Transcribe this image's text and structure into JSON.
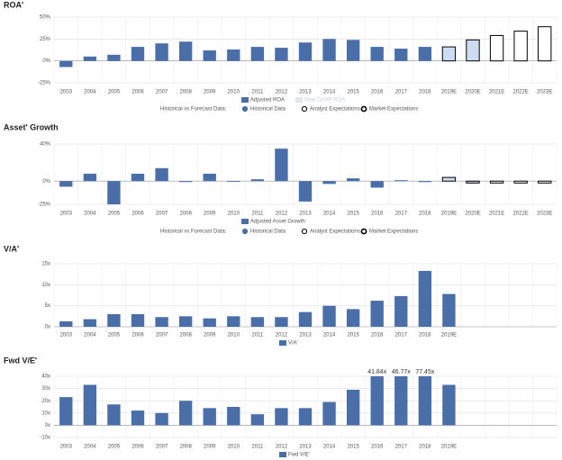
{
  "chart_data": [
    {
      "type": "bar",
      "title": "ROA'",
      "categories": [
        "2003",
        "2004",
        "2005",
        "2006",
        "2007",
        "2008",
        "2009",
        "2010",
        "2011",
        "2012",
        "2013",
        "2014",
        "2015",
        "2016",
        "2017",
        "2018",
        "2019E",
        "2020E",
        "2021E",
        "2022E",
        "2023E"
      ],
      "series": [
        {
          "name": "Historical Data",
          "color": "#4a6ea8",
          "values": [
            -7,
            5,
            7,
            16,
            20,
            22,
            12,
            13,
            16,
            15,
            21,
            25,
            24,
            16,
            14,
            16,
            null,
            null,
            null,
            null,
            null
          ]
        },
        {
          "name": "Analyst Expectations",
          "color": "#cddcf0",
          "values": [
            null,
            null,
            null,
            null,
            null,
            null,
            null,
            null,
            null,
            null,
            null,
            null,
            null,
            null,
            null,
            null,
            16,
            24,
            null,
            null,
            null
          ]
        },
        {
          "name": "Market Expectations",
          "color": "#ffffff",
          "values": [
            null,
            null,
            null,
            null,
            null,
            null,
            null,
            null,
            null,
            null,
            null,
            null,
            null,
            null,
            null,
            null,
            null,
            null,
            29,
            34,
            39
          ]
        }
      ],
      "legend": [
        "Adjusted ROA",
        "Real GAAP ROA"
      ],
      "legend_title": "Historical vs Forecast Data:",
      "ylim": [
        -25,
        50
      ],
      "yticks": [
        {
          "value": -25,
          "label": "-25%"
        },
        {
          "value": 0,
          "label": "0%"
        },
        {
          "value": 25,
          "label": "25%"
        },
        {
          "value": 50,
          "label": "50%"
        }
      ]
    },
    {
      "type": "bar",
      "title": "Asset' Growth",
      "categories": [
        "2003",
        "2004",
        "2005",
        "2006",
        "2007",
        "2008",
        "2009",
        "2010",
        "2011",
        "2012",
        "2013",
        "2014",
        "2015",
        "2016",
        "2017",
        "2018",
        "2019E",
        "2020E",
        "2021E",
        "2022E",
        "2023E"
      ],
      "series": [
        {
          "name": "Historical Data",
          "color": "#4a6ea8",
          "values": [
            -6,
            8,
            -25,
            8,
            14,
            -1,
            8,
            0,
            2,
            35,
            -22,
            -3,
            3,
            -7,
            1,
            -1,
            null,
            null,
            null,
            null,
            null
          ]
        },
        {
          "name": "Analyst Expectations",
          "color": "#cddcf0",
          "values": [
            null,
            null,
            null,
            null,
            null,
            null,
            null,
            null,
            null,
            null,
            null,
            null,
            null,
            null,
            null,
            null,
            4,
            -2,
            null,
            null,
            null
          ]
        },
        {
          "name": "Market Expectations",
          "color": "#ffffff",
          "values": [
            null,
            null,
            null,
            null,
            null,
            null,
            null,
            null,
            null,
            null,
            null,
            null,
            null,
            null,
            null,
            null,
            null,
            null,
            -2,
            -2,
            -2
          ]
        }
      ],
      "legend": [
        "Adjusted Asset Growth"
      ],
      "legend_title": "Historical vs Forecast Data:",
      "ylim": [
        -25,
        40
      ],
      "yticks": [
        {
          "value": -25,
          "label": "-25%"
        },
        {
          "value": 0,
          "label": "0%"
        },
        {
          "value": 40,
          "label": "40%"
        }
      ]
    },
    {
      "type": "bar",
      "title": "V/A'",
      "categories": [
        "2003",
        "2004",
        "2005",
        "2006",
        "2007",
        "2008",
        "2009",
        "2010",
        "2011",
        "2012",
        "2013",
        "2014",
        "2015",
        "2016",
        "2017",
        "2018",
        "2019E"
      ],
      "series": [
        {
          "name": "V/A'",
          "color": "#4a6ea8",
          "values": [
            1.3,
            1.8,
            3,
            3,
            2.3,
            2.5,
            2,
            2.5,
            2.3,
            2.3,
            3.5,
            5,
            4.2,
            6.2,
            7.3,
            13.3,
            7.8
          ]
        }
      ],
      "ylim": [
        0,
        15
      ],
      "yticks": [
        {
          "value": 0,
          "label": "0x"
        },
        {
          "value": 5,
          "label": "5x"
        },
        {
          "value": 10,
          "label": "10x"
        },
        {
          "value": 15,
          "label": "15x"
        }
      ]
    },
    {
      "type": "bar",
      "title": "Fwd V/E'",
      "categories": [
        "2003",
        "2004",
        "2005",
        "2006",
        "2007",
        "2008",
        "2009",
        "2010",
        "2011",
        "2012",
        "2013",
        "2014",
        "2015",
        "2016",
        "2017",
        "2018",
        "2019E"
      ],
      "series": [
        {
          "name": "Fwd V/E'",
          "color": "#4a6ea8",
          "values": [
            23,
            33,
            17,
            12,
            10,
            20,
            14,
            15,
            9,
            14,
            14,
            19,
            29,
            41.84,
            46.77,
            77.45,
            33
          ],
          "value_labels": [
            null,
            null,
            null,
            null,
            null,
            null,
            null,
            null,
            null,
            null,
            null,
            null,
            null,
            "41.84x",
            "46.77x",
            "77.45x",
            null
          ]
        }
      ],
      "ylim": [
        -10,
        40
      ],
      "yticks": [
        {
          "value": -10,
          "label": "-10x"
        },
        {
          "value": 0,
          "label": "0x"
        },
        {
          "value": 10,
          "label": "10x"
        },
        {
          "value": 20,
          "label": "20x"
        },
        {
          "value": 30,
          "label": "30x"
        },
        {
          "value": 40,
          "label": "40x"
        }
      ]
    }
  ]
}
